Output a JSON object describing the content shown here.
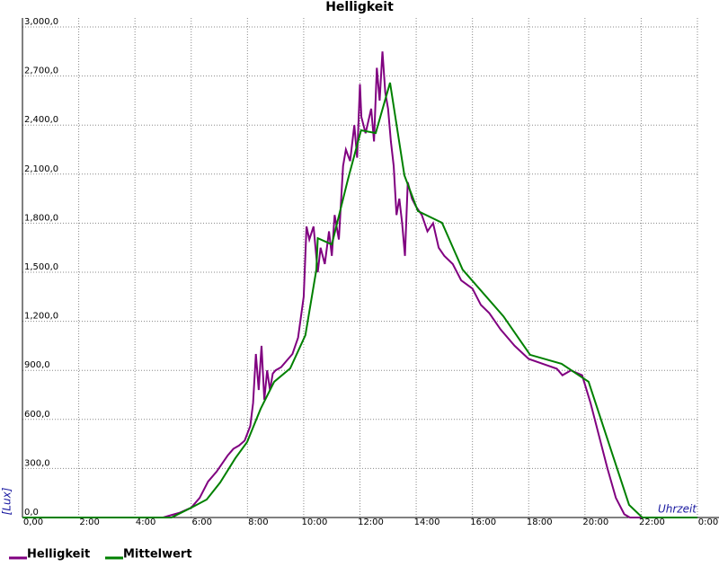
{
  "chart_data": {
    "type": "line",
    "title": "Helligkeit",
    "ylabel": "[Lux]",
    "xlabel": "Uhrzeit",
    "xlim": [
      0,
      24
    ],
    "ylim": [
      0,
      3000
    ],
    "grid": true,
    "legend": "bottom-left",
    "xticks": [
      {
        "value": 0,
        "label": "0,00"
      },
      {
        "value": 2,
        "label": "2:00"
      },
      {
        "value": 4,
        "label": "4:00"
      },
      {
        "value": 6,
        "label": "6:00"
      },
      {
        "value": 8,
        "label": "8:00"
      },
      {
        "value": 10,
        "label": "10:00"
      },
      {
        "value": 12,
        "label": "12:00"
      },
      {
        "value": 14,
        "label": "14:00"
      },
      {
        "value": 16,
        "label": "16:00"
      },
      {
        "value": 18,
        "label": "18:00"
      },
      {
        "value": 20,
        "label": "20:00"
      },
      {
        "value": 22,
        "label": "22:00"
      },
      {
        "value": 24,
        "label": "0:00"
      }
    ],
    "yticks": [
      {
        "value": 0,
        "label": "0,0"
      },
      {
        "value": 300,
        "label": "300,0"
      },
      {
        "value": 600,
        "label": "600,0"
      },
      {
        "value": 900,
        "label": "900,0"
      },
      {
        "value": 1200,
        "label": "1,200,0"
      },
      {
        "value": 1500,
        "label": "1,500,0"
      },
      {
        "value": 1800,
        "label": "1,800,0"
      },
      {
        "value": 2100,
        "label": "2,100,0"
      },
      {
        "value": 2400,
        "label": "2,400,0"
      },
      {
        "value": 2700,
        "label": "2,700,0"
      },
      {
        "value": 3000,
        "label": "3,000,0"
      }
    ],
    "series": [
      {
        "name": "Helligkeit",
        "color": "#800080",
        "x": [
          0,
          5.0,
          5.3,
          5.6,
          6.0,
          6.3,
          6.6,
          6.9,
          7.1,
          7.3,
          7.5,
          7.7,
          7.9,
          8.1,
          8.2,
          8.3,
          8.4,
          8.5,
          8.6,
          8.7,
          8.8,
          8.9,
          9.0,
          9.2,
          9.4,
          9.6,
          9.8,
          10.0,
          10.1,
          10.2,
          10.35,
          10.5,
          10.6,
          10.75,
          10.9,
          11.0,
          11.1,
          11.25,
          11.4,
          11.5,
          11.65,
          11.8,
          11.9,
          12.0,
          12.05,
          12.2,
          12.4,
          12.5,
          12.6,
          12.7,
          12.8,
          12.9,
          13.0,
          13.1,
          13.2,
          13.3,
          13.4,
          13.5,
          13.6,
          13.7,
          13.85,
          14.0,
          14.2,
          14.4,
          14.6,
          14.8,
          15.0,
          15.3,
          15.6,
          16.0,
          16.3,
          16.6,
          17.0,
          17.5,
          18.0,
          18.5,
          19.0,
          19.2,
          19.5,
          19.9,
          20.2,
          20.5,
          20.8,
          21.1,
          21.4,
          21.6,
          24
        ],
        "values": [
          0,
          0,
          15,
          30,
          60,
          120,
          220,
          280,
          330,
          380,
          420,
          440,
          470,
          560,
          700,
          1000,
          780,
          1050,
          720,
          900,
          780,
          880,
          900,
          920,
          960,
          1000,
          1100,
          1350,
          1780,
          1700,
          1780,
          1500,
          1650,
          1550,
          1750,
          1600,
          1850,
          1700,
          2150,
          2250,
          2180,
          2400,
          2200,
          2650,
          2450,
          2350,
          2500,
          2300,
          2750,
          2550,
          2850,
          2600,
          2500,
          2300,
          2150,
          1850,
          1950,
          1800,
          1600,
          2050,
          1950,
          1900,
          1850,
          1750,
          1800,
          1650,
          1600,
          1550,
          1450,
          1400,
          1300,
          1250,
          1150,
          1050,
          970,
          940,
          910,
          870,
          900,
          870,
          700,
          500,
          300,
          120,
          20,
          0,
          0
        ]
      },
      {
        "name": "Mittelwert",
        "color": "#008000",
        "x": [
          0,
          5.3,
          6.0,
          6.55,
          7.03,
          7.57,
          7.99,
          8.47,
          8.95,
          9.52,
          10.06,
          10.45,
          10.5,
          11.0,
          11.57,
          12.04,
          12.56,
          13.07,
          13.58,
          14.06,
          14.92,
          15.65,
          17.1,
          18.05,
          19.17,
          20.13,
          21.57,
          22.04,
          24
        ],
        "values": [
          0,
          0,
          60,
          110,
          214,
          363,
          462,
          665,
          830,
          912,
          1115,
          1516,
          1708,
          1670,
          2066,
          2368,
          2351,
          2659,
          2093,
          1874,
          1802,
          1516,
          1231,
          995,
          940,
          830,
          77,
          0,
          0
        ]
      }
    ]
  }
}
